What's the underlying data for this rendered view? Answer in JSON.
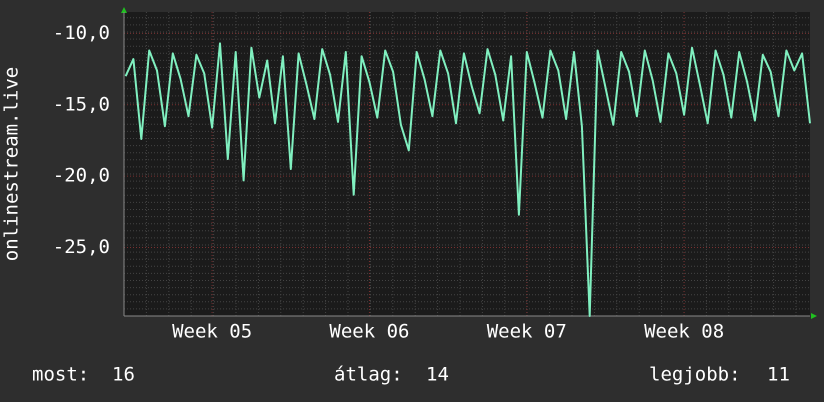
{
  "chart_data": {
    "type": "line",
    "y_label": "onlinestream.live",
    "x": [
      4.45,
      4.5,
      4.55,
      4.6,
      4.65,
      4.7,
      4.75,
      4.8,
      4.85,
      4.9,
      4.95,
      5.0,
      5.05,
      5.1,
      5.15,
      5.2,
      5.25,
      5.3,
      5.35,
      5.4,
      5.45,
      5.5,
      5.55,
      5.6,
      5.65,
      5.7,
      5.75,
      5.8,
      5.85,
      5.9,
      5.95,
      6.0,
      6.05,
      6.1,
      6.15,
      6.2,
      6.25,
      6.3,
      6.35,
      6.4,
      6.45,
      6.5,
      6.55,
      6.6,
      6.65,
      6.7,
      6.75,
      6.8,
      6.85,
      6.9,
      6.95,
      7.0,
      7.05,
      7.1,
      7.15,
      7.2,
      7.25,
      7.3,
      7.35,
      7.4,
      7.45,
      7.5,
      7.55,
      7.6,
      7.65,
      7.7,
      7.75,
      7.8,
      7.85,
      7.9,
      7.95,
      8.0,
      8.05,
      8.1,
      8.15,
      8.2,
      8.25,
      8.3,
      8.35,
      8.4,
      8.45,
      8.5,
      8.55,
      8.6,
      8.65,
      8.7,
      8.75,
      8.8
    ],
    "series": [
      {
        "color": "#80f0c0",
        "values": [
          -13.0,
          -11.8,
          -17.4,
          -11.2,
          -12.6,
          -16.5,
          -11.4,
          -13.2,
          -15.8,
          -11.5,
          -12.8,
          -16.6,
          -10.7,
          -18.8,
          -11.3,
          -20.3,
          -11.0,
          -14.5,
          -11.9,
          -16.3,
          -11.6,
          -19.5,
          -11.4,
          -13.6,
          -16.0,
          -11.1,
          -12.9,
          -16.2,
          -11.3,
          -21.3,
          -11.6,
          -13.4,
          -15.9,
          -11.2,
          -12.7,
          -16.4,
          -18.2,
          -11.3,
          -13.2,
          -15.8,
          -11.2,
          -12.8,
          -16.3,
          -11.4,
          -13.7,
          -15.6,
          -11.1,
          -12.9,
          -16.1,
          -11.6,
          -22.7,
          -11.3,
          -13.5,
          -15.9,
          -11.2,
          -12.6,
          -16.0,
          -11.3,
          -16.5,
          -29.8,
          -11.2,
          -13.8,
          -16.4,
          -11.3,
          -12.7,
          -15.8,
          -11.2,
          -13.3,
          -16.2,
          -11.4,
          -12.8,
          -15.7,
          -11.0,
          -13.6,
          -16.3,
          -11.2,
          -12.9,
          -15.9,
          -11.3,
          -13.4,
          -16.1,
          -11.5,
          -12.7,
          -15.8,
          -11.2,
          -12.6,
          -11.4,
          -16.3
        ]
      }
    ],
    "xlim": [
      4.44,
      8.8
    ],
    "xticks": [
      {
        "value": 5,
        "label": "Week 05"
      },
      {
        "value": 6,
        "label": "Week 06"
      },
      {
        "value": 7,
        "label": "Week 07"
      },
      {
        "value": 8,
        "label": "Week 08"
      }
    ],
    "ylim": [
      -29.8,
      -8.5
    ],
    "yticks": [
      {
        "value": -10,
        "label": "-10,0"
      },
      {
        "value": -15,
        "label": "-15,0"
      },
      {
        "value": -20,
        "label": "-20,0"
      },
      {
        "value": -25,
        "label": "-25,0"
      }
    ],
    "grid": true,
    "stats": [
      {
        "label": "most:",
        "value": 16
      },
      {
        "label": "átlag:",
        "value": 14
      },
      {
        "label": "legjobb:",
        "value": 11
      }
    ]
  }
}
